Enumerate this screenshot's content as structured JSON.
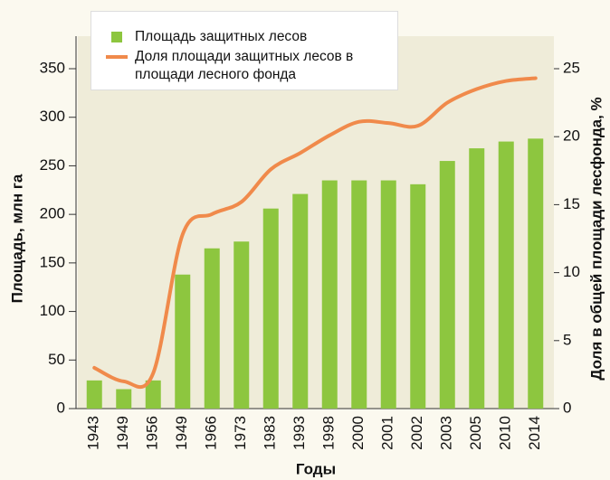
{
  "chart_data": {
    "type": "bar-line",
    "categories": [
      "1943",
      "1949",
      "1956",
      "1949",
      "1966",
      "1973",
      "1983",
      "1993",
      "1998",
      "2000",
      "2001",
      "2002",
      "2003",
      "2005",
      "2010",
      "2014"
    ],
    "series": [
      {
        "name": "Площадь защитных лесов",
        "color": "#8dc63f",
        "type": "bar",
        "values": [
          29,
          20,
          29,
          138,
          165,
          172,
          206,
          221,
          235,
          235,
          235,
          231,
          255,
          268,
          275,
          278
        ]
      },
      {
        "name": "Доля площади защитных лесов в площади лесного фонда",
        "color": "#f08a4b",
        "type": "line",
        "axis": "y2",
        "values": [
          3.0,
          2.0,
          2.6,
          12.8,
          14.3,
          15.2,
          17.6,
          18.8,
          20.1,
          21.1,
          21.0,
          20.8,
          22.5,
          23.5,
          24.1,
          24.3
        ]
      }
    ],
    "x_label": "Годы",
    "y_label": "Площадь, млн га",
    "y2_label": "Доля в общей площади лесфонда, %",
    "ylim": [
      0,
      350
    ],
    "yticks": [
      0,
      50,
      100,
      150,
      200,
      250,
      300,
      350
    ],
    "y2lim": [
      0,
      25
    ],
    "y2ticks": [
      0,
      5,
      10,
      15,
      20,
      25
    ]
  }
}
